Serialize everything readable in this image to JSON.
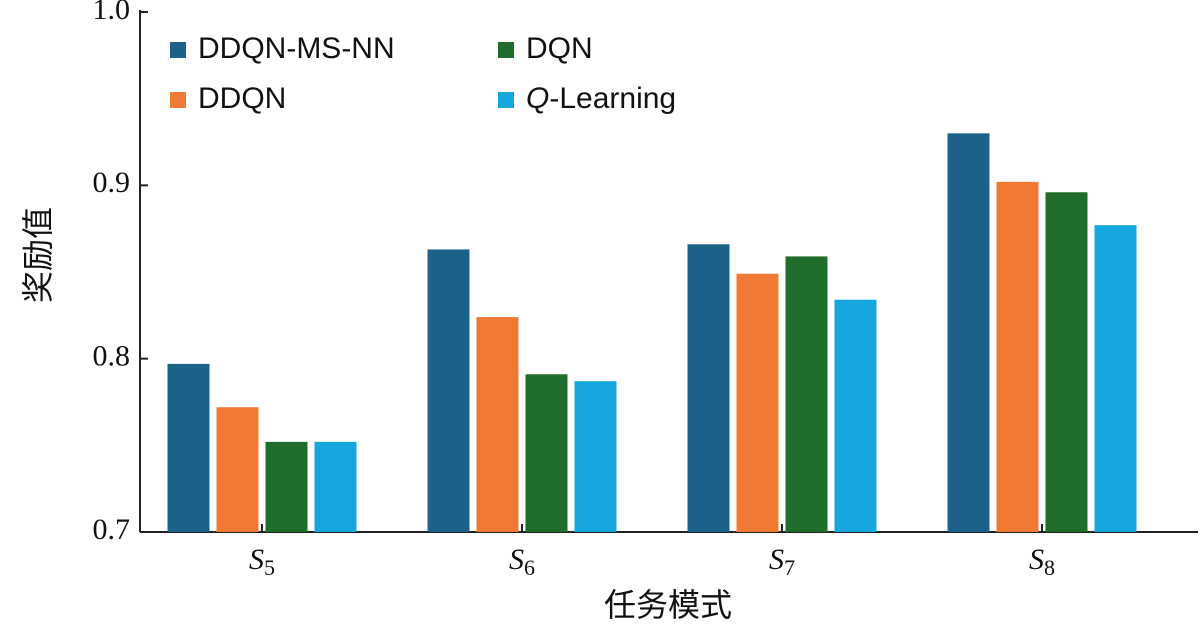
{
  "chart_data": {
    "type": "bar",
    "y_label": "奖励值",
    "x_label": "任务模式",
    "categories": [
      "S5",
      "S6",
      "S7",
      "S8"
    ],
    "series": [
      {
        "name": "DDQN-MS-NN",
        "color": "#1b6189",
        "values": [
          0.797,
          0.863,
          0.866,
          0.93
        ]
      },
      {
        "name": "DDQN",
        "color": "#f07a34",
        "values": [
          0.772,
          0.824,
          0.849,
          0.902
        ]
      },
      {
        "name": "DQN",
        "color": "#206c2a",
        "values": [
          0.752,
          0.791,
          0.859,
          0.896
        ]
      },
      {
        "name": "Q-Learning",
        "color": "#15a6e0",
        "values": [
          0.752,
          0.787,
          0.834,
          0.877
        ]
      }
    ],
    "ylim": [
      0.7,
      1.0
    ],
    "yticks": [
      0.7,
      0.8,
      0.9,
      {
        "value": 1.0,
        "label": "1.0"
      }
    ]
  }
}
